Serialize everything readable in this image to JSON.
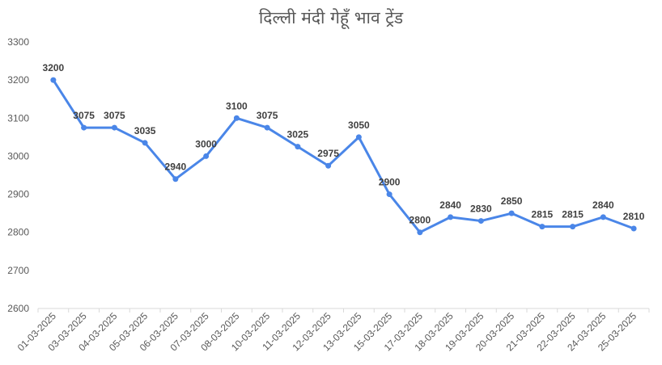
{
  "chart_data": {
    "type": "line",
    "title": "दिल्ली मंदी गेहूँ भाव ट्रेंड",
    "xlabel": "",
    "ylabel": "",
    "ylim": [
      2600,
      3300
    ],
    "yticks": [
      2600,
      2700,
      2800,
      2900,
      3000,
      3100,
      3200,
      3300
    ],
    "grid": false,
    "legend": "none",
    "categories": [
      "01-03-2025",
      "03-03-2025",
      "04-03-2025",
      "05-03-2025",
      "06-03-2025",
      "07-03-2025",
      "08-03-2025",
      "10-03-2025",
      "11-03-2025",
      "12-03-2025",
      "13-03-2025",
      "15-03-2025",
      "17-03-2025",
      "18-03-2025",
      "19-03-2025",
      "20-03-2025",
      "21-03-2025",
      "22-03-2025",
      "24-03-2025",
      "25-03-2025"
    ],
    "series": [
      {
        "values": [
          3200,
          3075,
          3075,
          3035,
          2940,
          3000,
          3100,
          3075,
          3025,
          2975,
          3050,
          2900,
          2800,
          2840,
          2830,
          2850,
          2815,
          2815,
          2840,
          2810
        ],
        "color": "#4a86e8"
      }
    ]
  }
}
